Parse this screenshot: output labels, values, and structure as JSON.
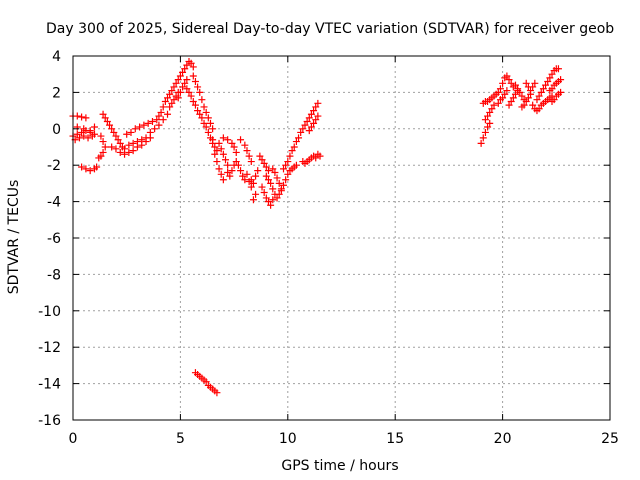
{
  "chart_data": {
    "type": "scatter",
    "title": "Day 300 of 2025, Sidereal Day-to-day VTEC variation (SDTVAR) for receiver geob",
    "xlabel": "GPS time / hours",
    "ylabel": "SDTVAR / TECUs",
    "xlim": [
      0,
      25
    ],
    "ylim": [
      -16,
      4
    ],
    "xticks": [
      "0",
      "5",
      "10",
      "15",
      "20",
      "25"
    ],
    "yticks": [
      "4",
      "2",
      "0",
      "-2",
      "-4",
      "-6",
      "-8",
      "-10",
      "-12",
      "-14",
      "-16"
    ],
    "grid": true,
    "marker": "+",
    "marker_color": "#ff0000",
    "series": [
      {
        "name": "SDTVAR",
        "points": [
          [
            0.0,
            0.7
          ],
          [
            0.2,
            0.7
          ],
          [
            0.4,
            0.65
          ],
          [
            0.6,
            0.6
          ],
          [
            0.0,
            -0.4
          ],
          [
            0.2,
            -0.3
          ],
          [
            0.4,
            -0.2
          ],
          [
            0.6,
            -0.1
          ],
          [
            0.8,
            -0.2
          ],
          [
            1.0,
            -0.3
          ],
          [
            0.1,
            -0.6
          ],
          [
            0.3,
            -0.5
          ],
          [
            0.5,
            -0.4
          ],
          [
            0.7,
            -0.5
          ],
          [
            0.9,
            -0.4
          ],
          [
            0.2,
            0.1
          ],
          [
            0.5,
            0.0
          ],
          [
            0.8,
            -0.1
          ],
          [
            1.0,
            0.1
          ],
          [
            0.4,
            -2.1
          ],
          [
            0.6,
            -2.2
          ],
          [
            0.8,
            -2.3
          ],
          [
            1.0,
            -2.2
          ],
          [
            1.1,
            -2.1
          ],
          [
            1.2,
            -1.6
          ],
          [
            1.3,
            -1.5
          ],
          [
            1.4,
            -1.3
          ],
          [
            1.5,
            -1.0
          ],
          [
            1.4,
            -0.7
          ],
          [
            1.3,
            -0.4
          ],
          [
            1.4,
            0.8
          ],
          [
            1.5,
            0.6
          ],
          [
            1.6,
            0.4
          ],
          [
            1.7,
            0.2
          ],
          [
            1.8,
            0.0
          ],
          [
            1.9,
            -0.2
          ],
          [
            2.0,
            -0.4
          ],
          [
            2.1,
            -0.6
          ],
          [
            2.2,
            -0.8
          ],
          [
            2.3,
            -1.0
          ],
          [
            2.4,
            -1.1
          ],
          [
            1.8,
            -1.0
          ],
          [
            2.0,
            -1.1
          ],
          [
            2.2,
            -1.3
          ],
          [
            2.4,
            -1.4
          ],
          [
            2.6,
            -1.3
          ],
          [
            2.5,
            -0.3
          ],
          [
            2.7,
            -0.2
          ],
          [
            2.9,
            0.0
          ],
          [
            3.1,
            0.1
          ],
          [
            3.3,
            0.2
          ],
          [
            2.6,
            -0.9
          ],
          [
            2.8,
            -0.8
          ],
          [
            3.0,
            -0.7
          ],
          [
            3.2,
            -0.6
          ],
          [
            3.4,
            -0.5
          ],
          [
            2.8,
            -1.2
          ],
          [
            3.0,
            -1.0
          ],
          [
            3.2,
            -0.9
          ],
          [
            3.4,
            -0.7
          ],
          [
            3.6,
            -0.5
          ],
          [
            3.5,
            0.3
          ],
          [
            3.7,
            0.4
          ],
          [
            3.9,
            0.5
          ],
          [
            4.0,
            0.7
          ],
          [
            4.1,
            0.9
          ],
          [
            3.6,
            -0.2
          ],
          [
            3.8,
            0.0
          ],
          [
            4.0,
            0.2
          ],
          [
            4.2,
            0.5
          ],
          [
            4.4,
            0.8
          ],
          [
            4.2,
            1.2
          ],
          [
            4.3,
            1.5
          ],
          [
            4.4,
            1.7
          ],
          [
            4.5,
            1.9
          ],
          [
            4.6,
            2.1
          ],
          [
            4.5,
            1.2
          ],
          [
            4.6,
            1.4
          ],
          [
            4.7,
            1.6
          ],
          [
            4.8,
            1.8
          ],
          [
            4.9,
            2.0
          ],
          [
            4.7,
            2.3
          ],
          [
            4.8,
            2.5
          ],
          [
            4.9,
            2.7
          ],
          [
            5.0,
            2.9
          ],
          [
            5.1,
            3.1
          ],
          [
            4.9,
            1.7
          ],
          [
            5.0,
            2.0
          ],
          [
            5.1,
            2.3
          ],
          [
            5.2,
            2.5
          ],
          [
            5.3,
            2.7
          ],
          [
            5.2,
            3.3
          ],
          [
            5.3,
            3.5
          ],
          [
            5.4,
            3.7
          ],
          [
            5.5,
            3.6
          ],
          [
            5.6,
            3.4
          ],
          [
            5.3,
            2.2
          ],
          [
            5.4,
            2.0
          ],
          [
            5.5,
            1.8
          ],
          [
            5.6,
            1.5
          ],
          [
            5.7,
            1.3
          ],
          [
            5.6,
            2.9
          ],
          [
            5.7,
            2.6
          ],
          [
            5.8,
            2.3
          ],
          [
            5.9,
            2.0
          ],
          [
            6.0,
            1.6
          ],
          [
            5.8,
            1.0
          ],
          [
            5.9,
            0.8
          ],
          [
            6.0,
            0.6
          ],
          [
            6.1,
            0.3
          ],
          [
            6.2,
            0.1
          ],
          [
            6.1,
            1.2
          ],
          [
            6.2,
            0.9
          ],
          [
            6.3,
            0.6
          ],
          [
            6.4,
            0.3
          ],
          [
            6.5,
            0.0
          ],
          [
            6.3,
            -0.2
          ],
          [
            6.4,
            -0.5
          ],
          [
            6.5,
            -0.8
          ],
          [
            6.6,
            -1.0
          ],
          [
            6.7,
            -1.2
          ],
          [
            6.5,
            -0.6
          ],
          [
            6.6,
            -1.4
          ],
          [
            6.7,
            -1.8
          ],
          [
            6.8,
            -2.2
          ],
          [
            6.9,
            -2.5
          ],
          [
            7.0,
            -2.8
          ],
          [
            6.8,
            -0.8
          ],
          [
            6.9,
            -1.1
          ],
          [
            7.0,
            -1.4
          ],
          [
            7.1,
            -1.7
          ],
          [
            7.2,
            -2.0
          ],
          [
            7.0,
            -0.5
          ],
          [
            7.2,
            -0.6
          ],
          [
            7.4,
            -0.8
          ],
          [
            7.5,
            -1.0
          ],
          [
            7.6,
            -1.3
          ],
          [
            7.2,
            -2.4
          ],
          [
            7.3,
            -2.6
          ],
          [
            7.4,
            -2.3
          ],
          [
            7.5,
            -2.0
          ],
          [
            7.6,
            -1.8
          ],
          [
            7.7,
            -2.0
          ],
          [
            7.8,
            -2.3
          ],
          [
            7.9,
            -2.6
          ],
          [
            8.0,
            -2.8
          ],
          [
            8.1,
            -2.5
          ],
          [
            7.8,
            -0.6
          ],
          [
            8.0,
            -0.9
          ],
          [
            8.1,
            -1.2
          ],
          [
            8.2,
            -1.5
          ],
          [
            8.3,
            -1.8
          ],
          [
            8.2,
            -2.9
          ],
          [
            8.3,
            -3.2
          ],
          [
            8.4,
            -3.0
          ],
          [
            8.5,
            -2.6
          ],
          [
            8.6,
            -2.3
          ],
          [
            8.4,
            -3.9
          ],
          [
            8.5,
            -3.6
          ],
          [
            8.3,
            -2.8
          ],
          [
            8.7,
            -1.5
          ],
          [
            8.8,
            -1.7
          ],
          [
            8.9,
            -1.9
          ],
          [
            9.0,
            -2.1
          ],
          [
            9.1,
            -2.3
          ],
          [
            8.8,
            -3.2
          ],
          [
            8.9,
            -3.5
          ],
          [
            9.0,
            -3.8
          ],
          [
            9.1,
            -4.0
          ],
          [
            9.2,
            -4.2
          ],
          [
            9.3,
            -3.9
          ],
          [
            9.0,
            -2.6
          ],
          [
            9.1,
            -2.8
          ],
          [
            9.2,
            -3.0
          ],
          [
            9.3,
            -3.3
          ],
          [
            9.4,
            -3.6
          ],
          [
            9.3,
            -2.2
          ],
          [
            9.4,
            -2.4
          ],
          [
            9.5,
            -2.7
          ],
          [
            9.6,
            -3.0
          ],
          [
            9.7,
            -3.3
          ],
          [
            9.5,
            -3.8
          ],
          [
            9.6,
            -3.6
          ],
          [
            9.7,
            -3.4
          ],
          [
            9.8,
            -3.1
          ],
          [
            9.9,
            -2.8
          ],
          [
            9.8,
            -2.2
          ],
          [
            9.9,
            -2.0
          ],
          [
            10.0,
            -1.8
          ],
          [
            10.1,
            -1.5
          ],
          [
            10.2,
            -1.2
          ],
          [
            10.0,
            -2.5
          ],
          [
            10.1,
            -2.3
          ],
          [
            10.2,
            -2.2
          ],
          [
            10.3,
            -2.1
          ],
          [
            10.4,
            -2.0
          ],
          [
            10.3,
            -1.0
          ],
          [
            10.4,
            -0.7
          ],
          [
            10.5,
            -0.5
          ],
          [
            10.6,
            -0.2
          ],
          [
            10.7,
            0.0
          ],
          [
            10.7,
            -1.8
          ],
          [
            10.8,
            -1.9
          ],
          [
            10.9,
            -1.8
          ],
          [
            11.0,
            -1.7
          ],
          [
            11.1,
            -1.6
          ],
          [
            10.8,
            0.2
          ],
          [
            10.9,
            0.4
          ],
          [
            11.0,
            0.6
          ],
          [
            11.1,
            0.8
          ],
          [
            11.2,
            1.0
          ],
          [
            11.3,
            1.2
          ],
          [
            11.4,
            1.4
          ],
          [
            11.0,
            -0.1
          ],
          [
            11.1,
            0.1
          ],
          [
            11.2,
            0.3
          ],
          [
            11.3,
            0.5
          ],
          [
            11.4,
            0.7
          ],
          [
            11.2,
            -1.5
          ],
          [
            11.3,
            -1.6
          ],
          [
            11.4,
            -1.4
          ],
          [
            11.5,
            -1.5
          ],
          [
            5.7,
            -13.4
          ],
          [
            5.8,
            -13.5
          ],
          [
            5.9,
            -13.6
          ],
          [
            6.0,
            -13.7
          ],
          [
            6.1,
            -13.8
          ],
          [
            6.2,
            -13.9
          ],
          [
            6.3,
            -14.1
          ],
          [
            6.4,
            -14.2
          ],
          [
            6.5,
            -14.3
          ],
          [
            6.6,
            -14.4
          ],
          [
            6.7,
            -14.5
          ],
          [
            19.0,
            -0.8
          ],
          [
            19.1,
            -0.5
          ],
          [
            19.2,
            -0.2
          ],
          [
            19.3,
            0.1
          ],
          [
            19.4,
            0.3
          ],
          [
            19.2,
            0.5
          ],
          [
            19.3,
            0.7
          ],
          [
            19.4,
            0.9
          ],
          [
            19.5,
            1.1
          ],
          [
            19.6,
            1.3
          ],
          [
            19.1,
            1.4
          ],
          [
            19.2,
            1.5
          ],
          [
            19.3,
            1.5
          ],
          [
            19.4,
            1.6
          ],
          [
            19.5,
            1.7
          ],
          [
            19.6,
            1.8
          ],
          [
            19.7,
            1.9
          ],
          [
            19.8,
            2.0
          ],
          [
            19.9,
            2.2
          ],
          [
            20.0,
            2.5
          ],
          [
            19.8,
            1.4
          ],
          [
            19.9,
            1.6
          ],
          [
            20.0,
            1.7
          ],
          [
            20.1,
            1.9
          ],
          [
            20.2,
            2.1
          ],
          [
            20.1,
            2.8
          ],
          [
            20.2,
            2.9
          ],
          [
            20.3,
            2.7
          ],
          [
            20.4,
            2.5
          ],
          [
            20.5,
            2.3
          ],
          [
            20.3,
            1.3
          ],
          [
            20.4,
            1.5
          ],
          [
            20.5,
            1.7
          ],
          [
            20.6,
            1.9
          ],
          [
            20.7,
            2.1
          ],
          [
            20.6,
            2.4
          ],
          [
            20.7,
            2.2
          ],
          [
            20.8,
            2.0
          ],
          [
            20.9,
            1.8
          ],
          [
            21.0,
            1.6
          ],
          [
            20.9,
            1.2
          ],
          [
            21.0,
            1.3
          ],
          [
            21.1,
            1.5
          ],
          [
            21.2,
            1.7
          ],
          [
            21.3,
            1.9
          ],
          [
            21.1,
            2.5
          ],
          [
            21.2,
            2.3
          ],
          [
            21.3,
            2.1
          ],
          [
            21.4,
            2.3
          ],
          [
            21.5,
            2.5
          ],
          [
            21.4,
            1.3
          ],
          [
            21.5,
            1.1
          ],
          [
            21.6,
            1.0
          ],
          [
            21.7,
            1.1
          ],
          [
            21.8,
            1.3
          ],
          [
            21.6,
            1.6
          ],
          [
            21.7,
            1.8
          ],
          [
            21.8,
            2.0
          ],
          [
            21.9,
            2.2
          ],
          [
            22.0,
            2.4
          ],
          [
            21.9,
            1.4
          ],
          [
            22.0,
            1.5
          ],
          [
            22.1,
            1.6
          ],
          [
            22.2,
            1.7
          ],
          [
            22.3,
            1.8
          ],
          [
            22.1,
            2.6
          ],
          [
            22.2,
            2.8
          ],
          [
            22.3,
            3.0
          ],
          [
            22.4,
            3.2
          ],
          [
            22.5,
            3.3
          ],
          [
            22.6,
            3.3
          ],
          [
            22.2,
            2.1
          ],
          [
            22.3,
            2.2
          ],
          [
            22.4,
            2.4
          ],
          [
            22.5,
            2.5
          ],
          [
            22.6,
            2.6
          ],
          [
            22.7,
            2.7
          ],
          [
            22.3,
            1.5
          ],
          [
            22.4,
            1.6
          ],
          [
            22.5,
            1.8
          ],
          [
            22.6,
            1.9
          ],
          [
            22.7,
            2.0
          ]
        ]
      }
    ]
  }
}
